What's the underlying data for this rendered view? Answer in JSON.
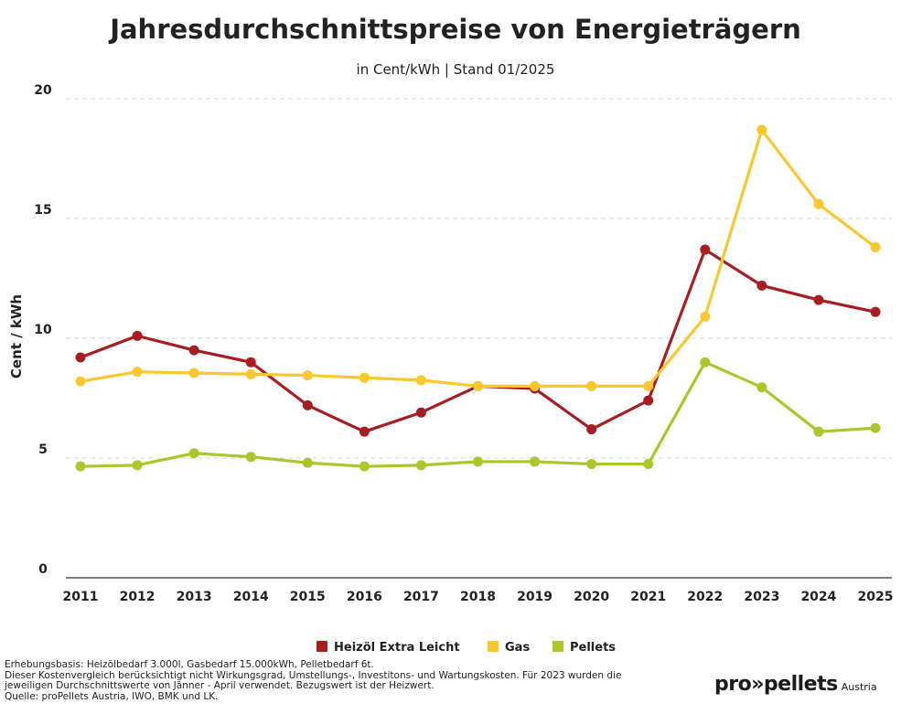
{
  "chart_data": {
    "type": "line",
    "title": "Jahresdurchschnittspreise von Energieträgern",
    "subtitle": "in Cent/kWh | Stand 01/2025",
    "ylabel": "Cent / kWh",
    "xlabel": "",
    "ylim": [
      0,
      20
    ],
    "yticks": [
      0,
      5,
      10,
      15,
      20
    ],
    "grid": true,
    "legend_position": "bottom-center",
    "categories": [
      "2011",
      "2012",
      "2013",
      "2014",
      "2015",
      "2016",
      "2017",
      "2018",
      "2019",
      "2020",
      "2021",
      "2022",
      "2023",
      "2024",
      "2025"
    ],
    "series": [
      {
        "name": "Heizöl Extra Leicht",
        "color": "#A61E22",
        "values": [
          9.2,
          10.1,
          9.5,
          9.0,
          7.2,
          6.1,
          6.9,
          8.0,
          7.9,
          6.2,
          7.4,
          13.7,
          12.2,
          11.6,
          11.1
        ]
      },
      {
        "name": "Gas",
        "color": "#F9C82E",
        "values": [
          8.2,
          8.6,
          8.55,
          8.5,
          8.45,
          8.35,
          8.25,
          8.0,
          8.0,
          8.0,
          8.0,
          10.9,
          18.7,
          15.6,
          13.8
        ]
      },
      {
        "name": "Pellets",
        "color": "#A8C82C",
        "values": [
          4.65,
          4.7,
          5.2,
          5.05,
          4.8,
          4.65,
          4.7,
          4.85,
          4.85,
          4.75,
          4.75,
          9.0,
          7.95,
          6.1,
          6.25
        ]
      }
    ]
  },
  "footnote": {
    "line1": "Erhebungsbasis: Heizölbedarf 3.000l, Gasbedarf 15.000kWh, Pelletbedarf 6t.",
    "line2": "Dieser Kostenvergleich berücksichtigt nicht Wirkungsgrad, Umstellungs-, Investitons- und Wartungskosten. Für 2023 wurden die",
    "line3": "jeweiligen Durchschnittswerte von Jänner - April verwendet. Bezugswert ist der Heizwert.",
    "line4": "Quelle: proPellets Austria, IWO, BMK und LK."
  },
  "logo": {
    "main": "pro»pellets",
    "sub": "Austria"
  }
}
